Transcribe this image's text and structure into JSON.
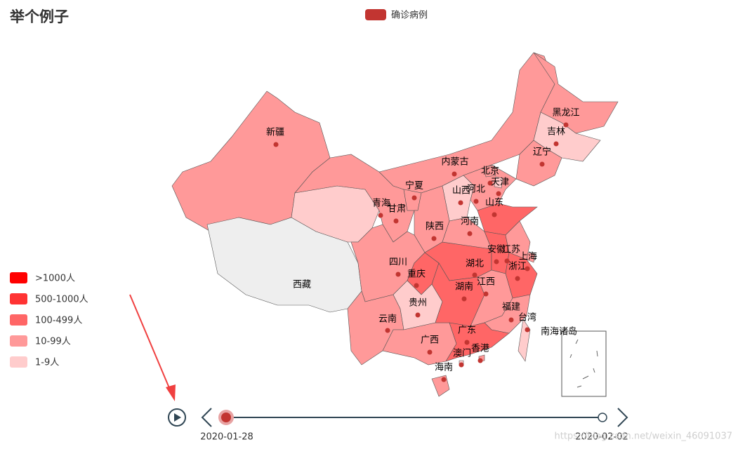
{
  "title": "举个例子",
  "legend": {
    "name": "确诊病例",
    "color": "#c23531"
  },
  "pieces": [
    {
      "label": ">1000人",
      "color": "#ff0000"
    },
    {
      "label": "500-1000人",
      "color": "#ff3333"
    },
    {
      "label": "100-499人",
      "color": "#ff6666"
    },
    {
      "label": "10-99人",
      "color": "#ff9999"
    },
    {
      "label": "1-9人",
      "color": "#ffcccc"
    }
  ],
  "no_data_color": "#eeeeee",
  "provinces": [
    {
      "name": "新疆",
      "color": "#ff9999"
    },
    {
      "name": "西藏",
      "color": "#eeeeee"
    },
    {
      "name": "青海",
      "color": "#ffcccc"
    },
    {
      "name": "甘肃",
      "color": "#ff9999"
    },
    {
      "name": "内蒙古",
      "color": "#ff9999"
    },
    {
      "name": "黑龙江",
      "color": "#ff9999"
    },
    {
      "name": "吉林",
      "color": "#ffcccc"
    },
    {
      "name": "辽宁",
      "color": "#ff9999"
    },
    {
      "name": "河北",
      "color": "#ff9999"
    },
    {
      "name": "山西",
      "color": "#ffcccc"
    },
    {
      "name": "山东",
      "color": "#ff6666"
    },
    {
      "name": "宁夏",
      "color": "#ff9999"
    },
    {
      "name": "陕西",
      "color": "#ff9999"
    },
    {
      "name": "四川",
      "color": "#ff9999"
    },
    {
      "name": "重庆",
      "color": "#ff6666"
    },
    {
      "name": "云南",
      "color": "#ff9999"
    },
    {
      "name": "贵州",
      "color": "#ffcccc"
    },
    {
      "name": "广西",
      "color": "#ff9999"
    },
    {
      "name": "湖北",
      "color": "#ff6666"
    },
    {
      "name": "湖南",
      "color": "#ff6666"
    },
    {
      "name": "河南",
      "color": "#ff9999"
    },
    {
      "name": "安徽",
      "color": "#ff6666"
    },
    {
      "name": "江苏",
      "color": "#ff9999"
    },
    {
      "name": "浙江",
      "color": "#ff6666"
    },
    {
      "name": "江西",
      "color": "#ff9999"
    },
    {
      "name": "福建",
      "color": "#ff9999"
    },
    {
      "name": "广东",
      "color": "#ff6666"
    },
    {
      "name": "海南",
      "color": "#ff9999"
    },
    {
      "name": "台湾",
      "color": "#ffcccc"
    },
    {
      "name": "上海",
      "color": "#ff9999"
    },
    {
      "name": "北京",
      "color": "#ff9999"
    },
    {
      "name": "天津",
      "color": "#ffcccc"
    },
    {
      "name": "香港",
      "color": "#ff9999"
    },
    {
      "name": "澳门",
      "color": "#ffcccc"
    }
  ],
  "inset_label": "南海诸岛",
  "timeline": {
    "start": "2020-01-28",
    "end": "2020-02-02"
  },
  "watermark": "https://blog.csdn.net/weixin_46091037"
}
